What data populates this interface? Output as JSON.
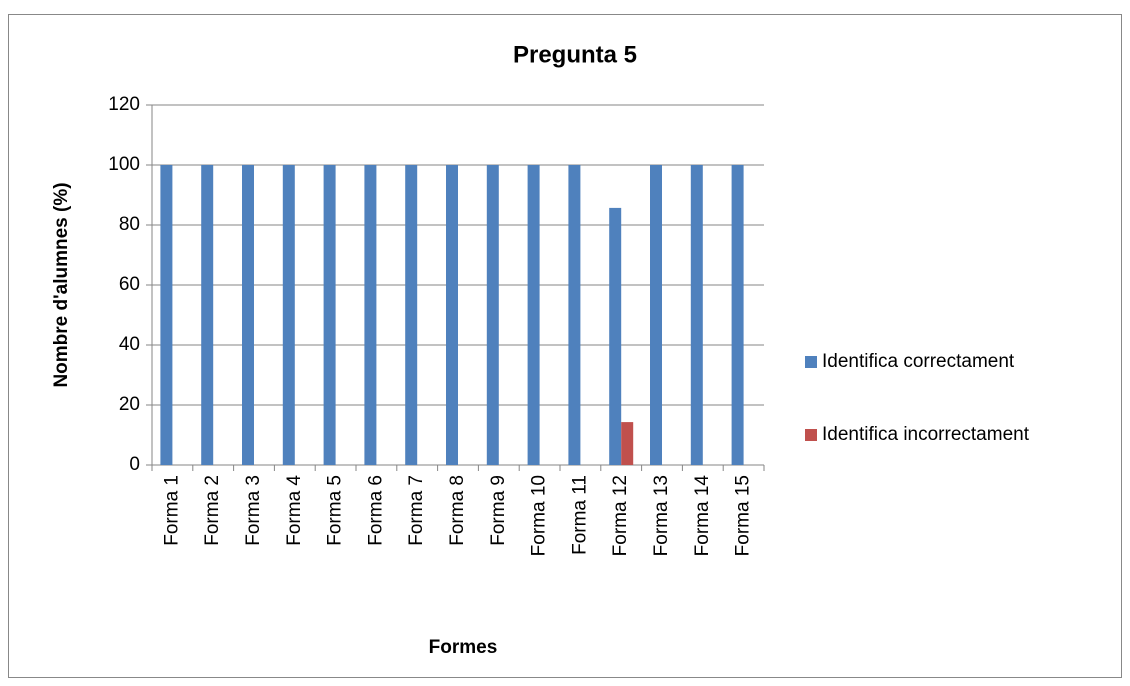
{
  "chart_data": {
    "type": "bar",
    "title": "Pregunta 5",
    "x_label": "Formes",
    "y_label": "Nombre d'alumnes (%)",
    "categories": [
      "Forma 1",
      "Forma 2",
      "Forma 3",
      "Forma 4",
      "Forma 5",
      "Forma 6",
      "Forma 7",
      "Forma 8",
      "Forma 9",
      "Forma 10",
      "Forma 11",
      "Forma 12",
      "Forma 13",
      "Forma 14",
      "Forma 15"
    ],
    "series": [
      {
        "name": "Identifica correctament",
        "color": "#4f81bd",
        "values": [
          100,
          100,
          100,
          100,
          100,
          100,
          100,
          100,
          100,
          100,
          100,
          85.7,
          100,
          100,
          100
        ]
      },
      {
        "name": "Identifica incorrectament",
        "color": "#c0504d",
        "values": [
          0,
          0,
          0,
          0,
          0,
          0,
          0,
          0,
          0,
          0,
          0,
          14.3,
          0,
          0,
          0
        ]
      }
    ],
    "ylim": [
      0,
      120
    ],
    "yticks": [
      0,
      20,
      40,
      60,
      80,
      100,
      120
    ],
    "grid": true,
    "legend": "right"
  }
}
